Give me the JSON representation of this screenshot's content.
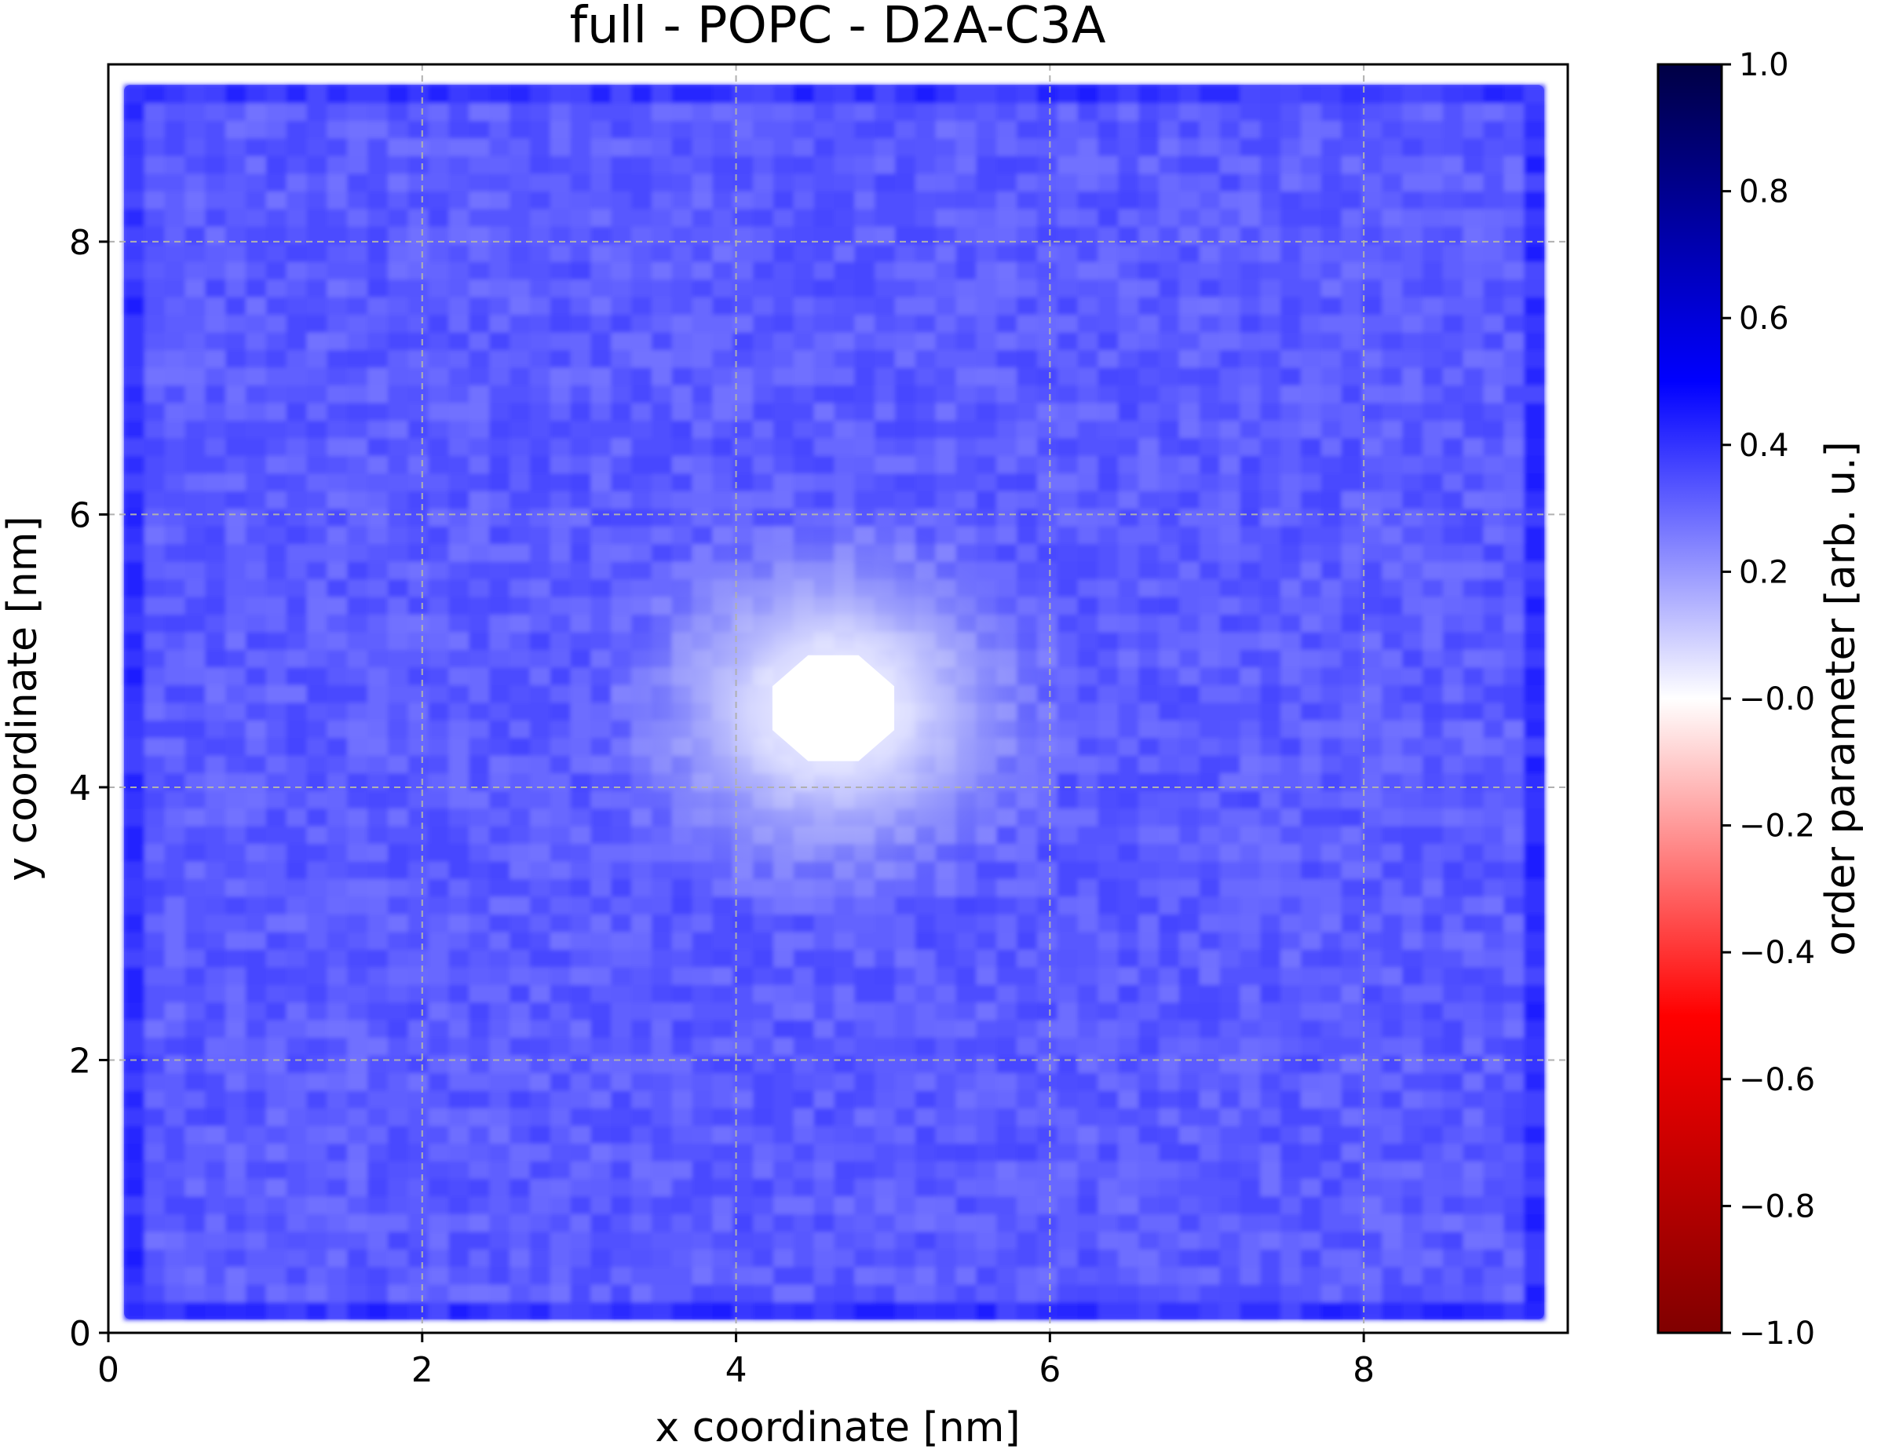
{
  "chart_data": {
    "type": "heatmap",
    "title": "full - POPC - D2A-C3A",
    "xlabel": "x coordinate [nm]",
    "ylabel": "y coordinate [nm]",
    "xlim": [
      0,
      9.3
    ],
    "ylim": [
      0,
      9.3
    ],
    "x_ticks": [
      0,
      2,
      4,
      6,
      8
    ],
    "y_ticks": [
      0,
      2,
      4,
      6,
      8
    ],
    "x_tick_labels": [
      "0",
      "2",
      "4",
      "6",
      "8"
    ],
    "y_tick_labels": [
      "0",
      "2",
      "4",
      "6",
      "8"
    ],
    "grid": true,
    "data_extent": {
      "x": [
        0.1,
        9.15
      ],
      "y": [
        0.1,
        9.15
      ]
    },
    "typical_value": 0.32,
    "hole": {
      "center": [
        4.62,
        4.58
      ],
      "radius": 0.42,
      "value": 0.0
    },
    "colorbar": {
      "label": "order parameter [arb. u.]",
      "range": [
        -1.0,
        1.0
      ],
      "ticks": [
        1.0,
        0.8,
        0.6,
        0.4,
        0.2,
        -0.0,
        -0.2,
        -0.4,
        -0.6,
        -0.8,
        -1.0
      ],
      "tick_labels": [
        "1.0",
        "0.8",
        "0.6",
        "0.4",
        "0.2",
        "−0.0",
        "−0.2",
        "−0.4",
        "−0.6",
        "−0.8",
        "−1.0"
      ],
      "colormap": "seismic_r",
      "colors": {
        "max": "#000044",
        "high": "#0000ff",
        "zero": "#ffffff",
        "low": "#ff0000",
        "min": "#800000"
      }
    }
  }
}
